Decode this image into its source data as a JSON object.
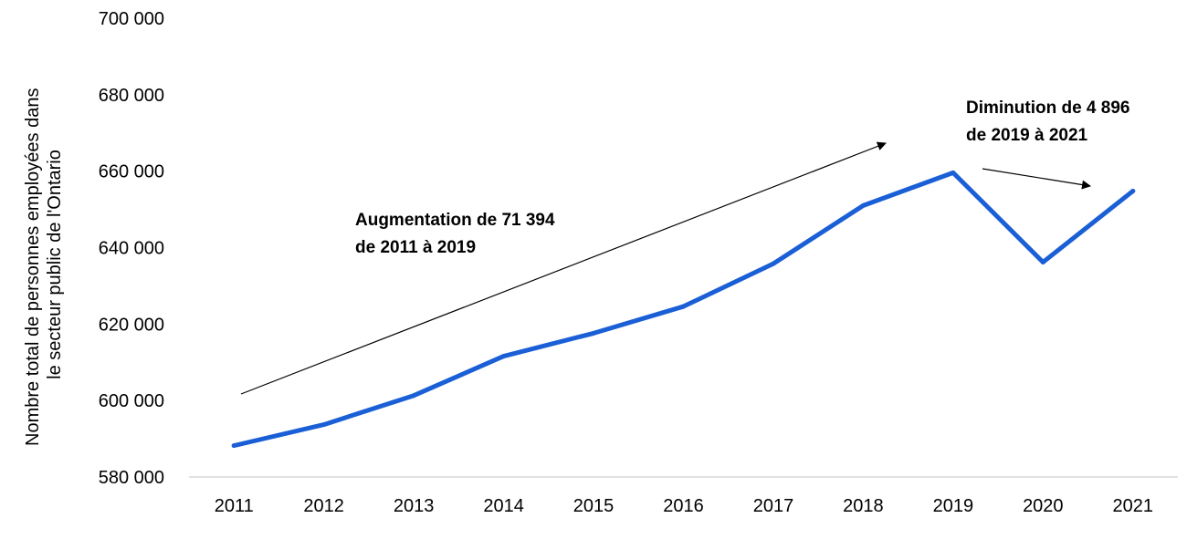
{
  "chart_data": {
    "type": "line",
    "categories": [
      "2011",
      "2012",
      "2013",
      "2014",
      "2015",
      "2016",
      "2017",
      "2018",
      "2019",
      "2020",
      "2021"
    ],
    "values": [
      588200,
      593700,
      601300,
      611600,
      617600,
      624600,
      635800,
      651000,
      659600,
      636200,
      654800
    ],
    "color": "#1a5fd6",
    "ylim": [
      580000,
      700000
    ],
    "yticks": [
      700000,
      680000,
      660000,
      640000,
      620000,
      600000,
      580000
    ],
    "ytick_labels": [
      "700 000",
      "680 000",
      "660 000",
      "640 000",
      "620 000",
      "600 000",
      "580 000"
    ],
    "ylabel_lines": [
      "Nombre total de personnes employées dans",
      "le secteur public de l'Ontario"
    ],
    "xlabel": "",
    "grid": false,
    "annotations": [
      {
        "lines": [
          "Augmentation de 71 394",
          "de 2011 à 2019"
        ]
      },
      {
        "lines": [
          "Diminution de 4 896",
          "de 2019 à 2021"
        ]
      }
    ]
  }
}
